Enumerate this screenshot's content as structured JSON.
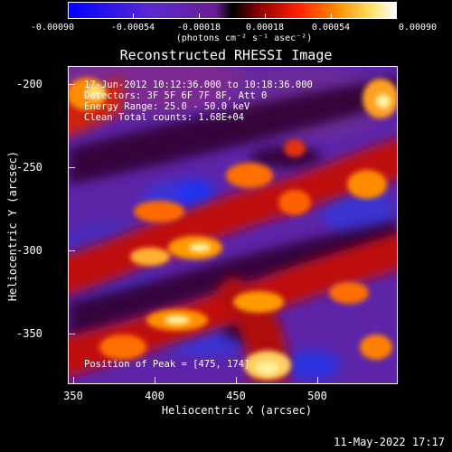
{
  "colorbar": {
    "labels": [
      "-0.00090",
      "-0.00054",
      "-0.00018",
      "0.00018",
      "0.00054",
      "0.00090"
    ],
    "units": "(photons cm⁻² s⁻¹ asec⁻²)"
  },
  "title": "Reconstructed RHESSI Image",
  "info": {
    "line1": "17-Jun-2012 10:12:36.000 to 10:18:36.000",
    "line2": "Detectors: 3F 5F 6F 7F 8F, Att 0",
    "line3": "Energy Range: 25.0 - 50.0 keV",
    "line4": "Clean    Total counts: 1.68E+04",
    "peak": "Position of Peak = [475, 174]"
  },
  "axes": {
    "xlabel": "Heliocentric X (arcsec)",
    "ylabel": "Heliocentric Y (arcsec)",
    "xticks": [
      "350",
      "400",
      "450",
      "500"
    ],
    "yticks": [
      "-200",
      "-250",
      "-300",
      "-350"
    ]
  },
  "timestamp": "11-May-2022 17:17"
}
